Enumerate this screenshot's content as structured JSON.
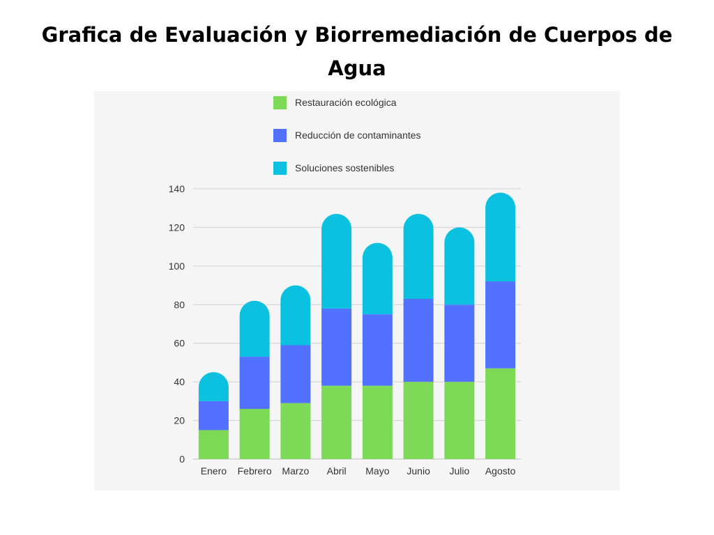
{
  "page": {
    "title": "Grafica de Evaluación y Biorremediación de Cuerpos de Agua"
  },
  "chart_data": {
    "type": "bar",
    "stacked": true,
    "title": "Grafica de Evaluación y Biorremediación de Cuerpos de Agua",
    "categories": [
      "Enero",
      "Febrero",
      "Marzo",
      "Abril",
      "Mayo",
      "Junio",
      "Julio",
      "Agosto"
    ],
    "series": [
      {
        "name": "Restauración ecológica",
        "color": "#7ed957",
        "values": [
          15,
          26,
          29,
          38,
          38,
          40,
          40,
          47
        ]
      },
      {
        "name": "Reducción de contaminantes",
        "color": "#5271ff",
        "values": [
          15,
          27,
          30,
          40,
          37,
          43,
          40,
          45
        ]
      },
      {
        "name": "Soluciones sostenibles",
        "color": "#0cc0df",
        "values": [
          15,
          29,
          31,
          49,
          37,
          44,
          40,
          46
        ]
      }
    ],
    "ylim": [
      0,
      140
    ],
    "yticks": [
      "0",
      "20",
      "40",
      "60",
      "80",
      "100",
      "120",
      "140"
    ],
    "xlabel": "",
    "ylabel": "",
    "grid": true,
    "legend_position": "top"
  }
}
